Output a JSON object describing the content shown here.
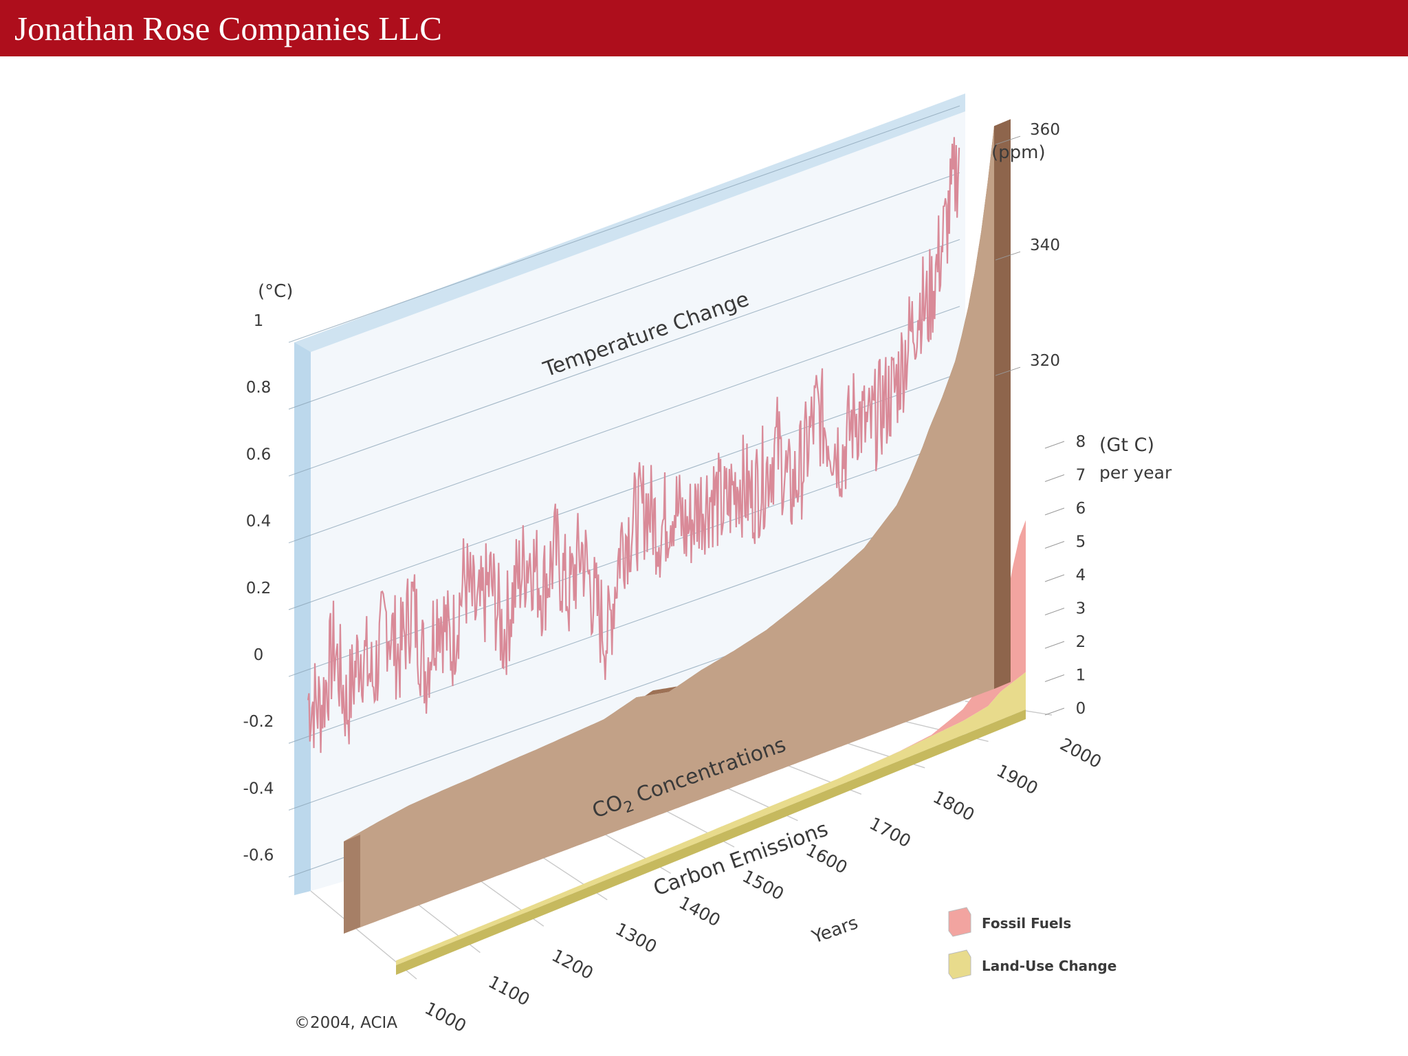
{
  "header": {
    "title": "Jonathan Rose Companies LLC"
  },
  "chart_data": {
    "type": "area",
    "source": "©2004, ACIA",
    "x": {
      "label": "Years",
      "ticks": [
        "1000",
        "1100",
        "1200",
        "1300",
        "1400",
        "1500",
        "1600",
        "1700",
        "1800",
        "1900",
        "2000"
      ]
    },
    "temperature": {
      "title": "Temperature Change",
      "unit": "(°C)",
      "ticks": [
        "1",
        "0.8",
        "0.6",
        "0.4",
        "0.2",
        "0",
        "-0.2",
        "-0.4",
        "-0.6"
      ],
      "ylim": [
        -0.6,
        1.0
      ],
      "color": "#d98a98",
      "years": [
        1000,
        1020,
        1040,
        1060,
        1080,
        1100,
        1120,
        1140,
        1160,
        1180,
        1200,
        1220,
        1240,
        1260,
        1280,
        1300,
        1320,
        1340,
        1360,
        1380,
        1400,
        1420,
        1440,
        1460,
        1480,
        1500,
        1520,
        1540,
        1560,
        1580,
        1600,
        1620,
        1640,
        1660,
        1680,
        1700,
        1720,
        1740,
        1760,
        1780,
        1800,
        1820,
        1840,
        1860,
        1880,
        1900,
        1910,
        1920,
        1930,
        1940,
        1950,
        1960,
        1970,
        1980,
        1990,
        2000
      ],
      "values": [
        -0.08,
        -0.12,
        0.05,
        -0.15,
        0.02,
        -0.1,
        0.08,
        -0.05,
        0.1,
        -0.12,
        0.06,
        -0.08,
        0.12,
        -0.02,
        0.08,
        -0.1,
        0.05,
        0.12,
        0.0,
        0.1,
        -0.05,
        0.08,
        -0.1,
        -0.22,
        0.06,
        0.1,
        0.14,
        0.05,
        0.12,
        0.02,
        0.08,
        0.1,
        0.04,
        0.12,
        0.05,
        0.1,
        0.18,
        0.02,
        0.1,
        0.24,
        0.16,
        0.08,
        0.2,
        0.12,
        0.18,
        0.22,
        0.28,
        0.34,
        0.4,
        0.46,
        0.42,
        0.5,
        0.58,
        0.66,
        0.76,
        0.86
      ]
    },
    "co2": {
      "title": "CO2 Concentrations",
      "unit": "(ppm)",
      "ticks": [
        "360",
        "340",
        "320"
      ],
      "color": "#c2a187",
      "top_color": "#9d7155",
      "years": [
        1000,
        1050,
        1100,
        1150,
        1200,
        1250,
        1300,
        1350,
        1400,
        1450,
        1500,
        1550,
        1600,
        1650,
        1700,
        1750,
        1800,
        1850,
        1870,
        1890,
        1900,
        1920,
        1940,
        1950,
        1960,
        1970,
        1980,
        1990,
        2000
      ],
      "values": [
        280.5,
        281.6,
        282.5,
        282.9,
        283.2,
        283.6,
        283.9,
        284.3,
        284.7,
        286.4,
        285.2,
        286.9,
        288.1,
        289.6,
        291.9,
        294.4,
        297.4,
        302.7,
        306.5,
        311.1,
        313.8,
        318.4,
        323.8,
        327.8,
        332.3,
        337.8,
        344.5,
        352.6,
        362.0
      ]
    },
    "emissions": {
      "title": "Carbon Emissions",
      "unit": "(Gt C)",
      "unit2": "per year",
      "ticks": [
        "8",
        "7",
        "6",
        "5",
        "4",
        "3",
        "2",
        "1",
        "0"
      ],
      "ylim": [
        0,
        8
      ],
      "series": [
        {
          "name": "Fossil Fuels",
          "color": "#f2a4a0",
          "years": [
            1750,
            1800,
            1850,
            1900,
            1920,
            1940,
            1950,
            1960,
            1970,
            1980,
            1990,
            2000
          ],
          "values": [
            0.0,
            0.01,
            0.05,
            0.5,
            0.9,
            1.2,
            1.6,
            2.5,
            3.8,
            5.0,
            6.0,
            6.5
          ]
        },
        {
          "name": "Land-Use Change",
          "color": "#e8db8c",
          "years": [
            1000,
            1200,
            1400,
            1600,
            1700,
            1800,
            1850,
            1900,
            1920,
            1940,
            1950,
            1960,
            1970,
            1980,
            1990,
            2000
          ],
          "values": [
            0.2,
            0.2,
            0.25,
            0.3,
            0.3,
            0.4,
            0.5,
            0.6,
            0.7,
            0.8,
            1.0,
            1.2,
            1.3,
            1.4,
            1.5,
            1.6
          ]
        }
      ]
    },
    "legend": [
      "Fossil Fuels",
      "Land-Use Change"
    ]
  }
}
